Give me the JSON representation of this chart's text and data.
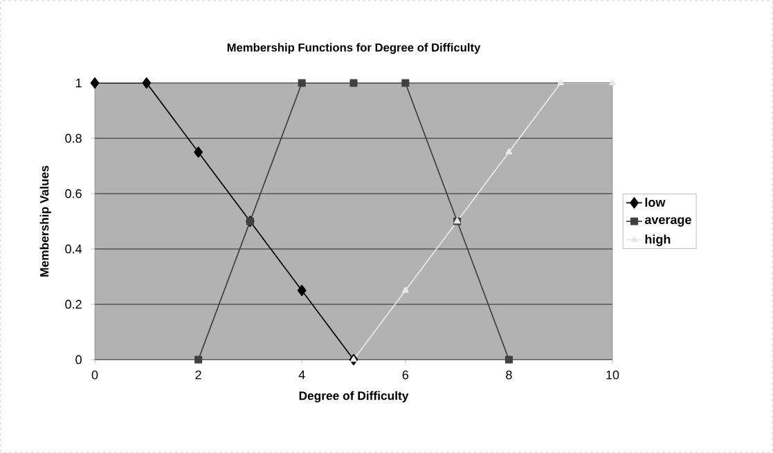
{
  "chart_data": {
    "type": "line",
    "title": "Membership Functions for Degree of Difficulty",
    "xlabel": "Degree of Difficulty",
    "ylabel": "Membership Values",
    "series": [
      {
        "name": "low",
        "color": "#000000",
        "marker": "diamond",
        "x": [
          0,
          1,
          2,
          3,
          4,
          5
        ],
        "values": [
          1,
          1,
          0.75,
          0.5,
          0.25,
          0
        ]
      },
      {
        "name": "average",
        "color": "#404040",
        "marker": "square",
        "x": [
          2,
          3,
          4,
          5,
          6,
          7,
          8
        ],
        "values": [
          0,
          0.5,
          1,
          1,
          1,
          0.5,
          0
        ]
      },
      {
        "name": "high",
        "color": "#e8e8e8",
        "marker": "triangle",
        "x": [
          5,
          6,
          7,
          8,
          9,
          10
        ],
        "values": [
          0,
          0.25,
          0.5,
          0.75,
          1,
          1
        ]
      }
    ],
    "xlim": [
      0,
      10
    ],
    "xticks": [
      0,
      2,
      4,
      6,
      8,
      10
    ],
    "ylim": [
      0,
      1
    ],
    "yticks": [
      0,
      0.2,
      0.4,
      0.6,
      0.8,
      1
    ],
    "grid": "y",
    "legend": "right"
  }
}
